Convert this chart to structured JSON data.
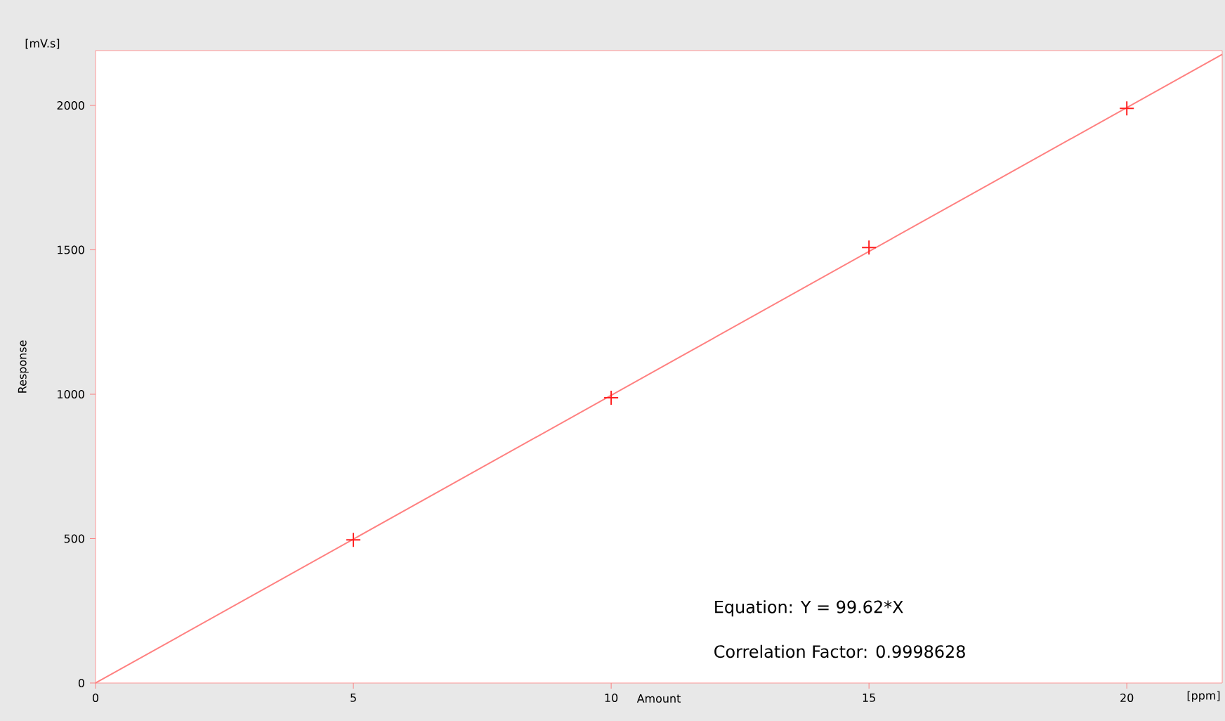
{
  "chart_data": {
    "type": "scatter",
    "xlabel": "Amount",
    "ylabel": "Response",
    "annotations": [
      "[mV.s]",
      "[ppm]",
      "Equation: Y = 99.62*X",
      "Correlation Factor: 0.9998628"
    ],
    "xlim": [
      0,
      21.85
    ],
    "ylim": [
      0,
      2190
    ],
    "xticks": [
      0,
      5,
      10,
      15,
      20
    ],
    "yticks": [
      0,
      500,
      1000,
      1500,
      2000
    ],
    "series": [
      {
        "type": "line",
        "color": "#ff8080",
        "marker": "none",
        "x": [
          0,
          21.85
        ],
        "values": [
          0,
          2177
        ]
      },
      {
        "color": "#ff2020",
        "marker": "cross",
        "x": [
          5,
          10,
          15,
          20
        ],
        "values": [
          496,
          988,
          1508,
          1990
        ]
      }
    ]
  }
}
